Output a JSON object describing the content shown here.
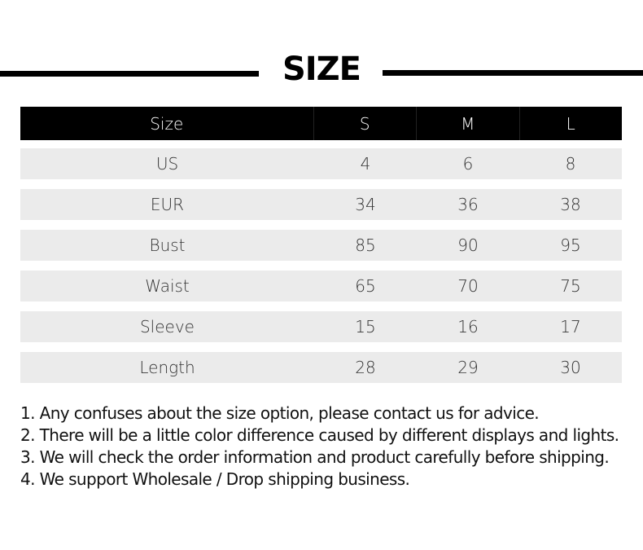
{
  "title": "SIZE",
  "table": {
    "headers": [
      "Size",
      "S",
      "M",
      "L"
    ],
    "rows": [
      [
        "US",
        "4",
        "6",
        "8"
      ],
      [
        "EUR",
        "34",
        "36",
        "38"
      ],
      [
        "Bust",
        "85",
        "90",
        "95"
      ],
      [
        "Waist",
        "65",
        "70",
        "75"
      ],
      [
        "Sleeve",
        "15",
        "16",
        "17"
      ],
      [
        "Length",
        "28",
        "29",
        "30"
      ]
    ]
  },
  "notes": [
    "1. Any confuses about the size option, please contact us for advice.",
    "2. There will be a little color difference caused by different displays and lights.",
    "3. We will check the order information and product carefully before shipping.",
    "4. We support Wholesale / Drop shipping  business."
  ]
}
